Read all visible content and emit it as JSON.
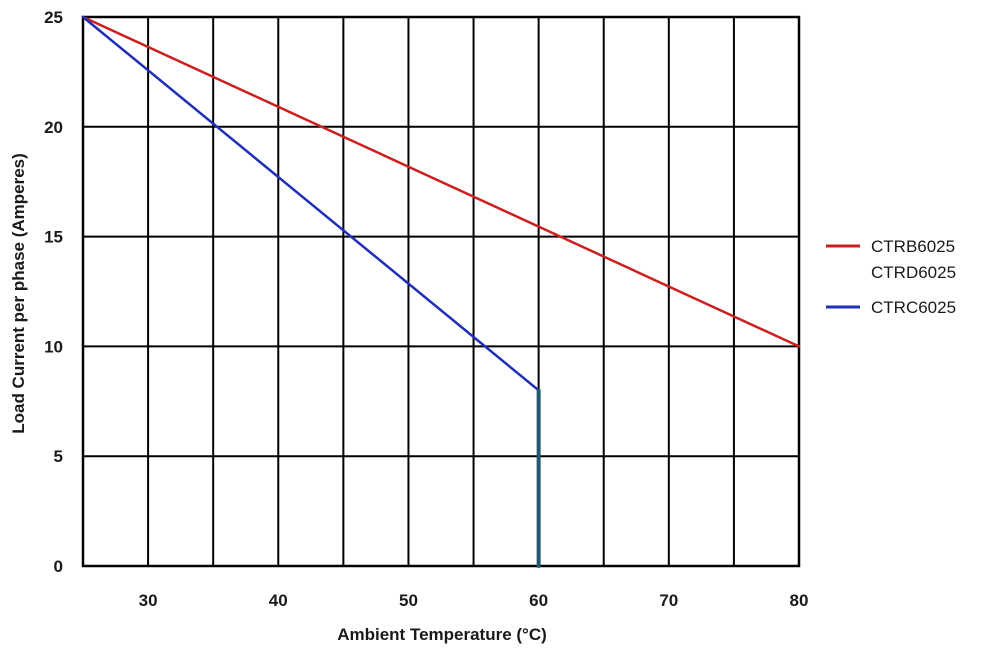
{
  "chart_data": {
    "type": "line",
    "title": "",
    "xlabel": "Ambient Temperature (°C)",
    "ylabel": "Load Current per phase (Amperes)",
    "xlim": [
      25,
      80
    ],
    "ylim": [
      0,
      25
    ],
    "x_gridlines": [
      25,
      30,
      35,
      40,
      45,
      50,
      55,
      60,
      65,
      70,
      75,
      80
    ],
    "y_gridlines": [
      0,
      5,
      10,
      15,
      20,
      25
    ],
    "xticks": [
      30,
      40,
      50,
      60,
      70,
      80
    ],
    "yticks": [
      0,
      5,
      10,
      15,
      20,
      25
    ],
    "grid": true,
    "legend_position": "right",
    "series": [
      {
        "legend_lines": [
          "CTRB6025",
          "CTRD6025"
        ],
        "color": "#cc1f1f",
        "points": [
          [
            25,
            25
          ],
          [
            80,
            10
          ]
        ]
      },
      {
        "legend_lines": [
          "CTRC6025"
        ],
        "color": "#1f2fb8",
        "drop_color": "#1f5a6e",
        "points": [
          [
            25,
            25
          ],
          [
            60,
            8
          ],
          [
            60,
            0
          ]
        ]
      }
    ]
  }
}
